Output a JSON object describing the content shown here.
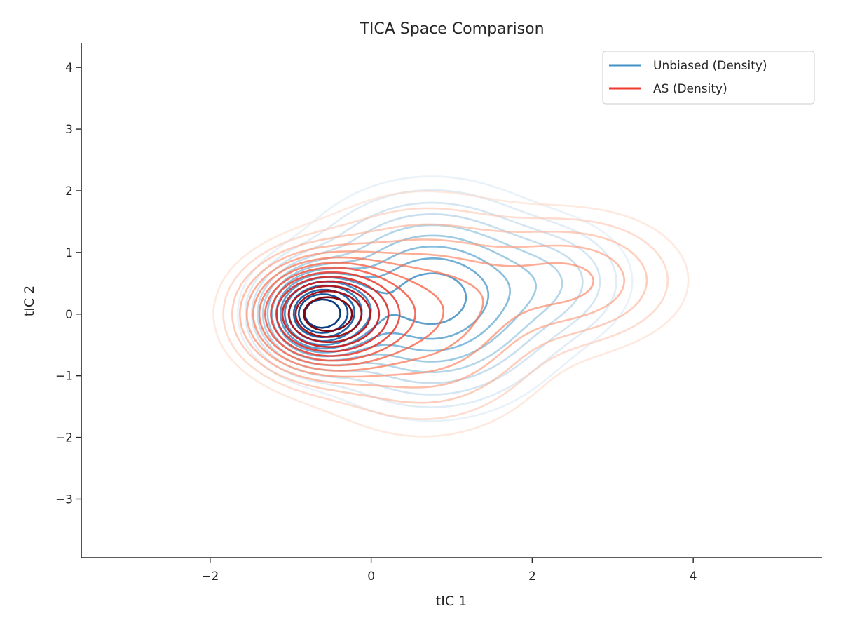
{
  "chart_data": {
    "type": "contour",
    "title": "TICA Space Comparison",
    "xlabel": "tIC 1",
    "ylabel": "tIC 2",
    "xlim": [
      -3.6,
      5.6
    ],
    "ylim": [
      -3.95,
      4.4
    ],
    "xticks": [
      -2,
      0,
      2,
      4
    ],
    "yticks": [
      -3,
      -2,
      -1,
      0,
      1,
      2,
      3,
      4
    ],
    "xtick_labels": [
      "−2",
      "0",
      "2",
      "4"
    ],
    "ytick_labels": [
      "−3",
      "−2",
      "−1",
      "0",
      "1",
      "2",
      "3",
      "4"
    ],
    "grid": false,
    "legend_position": "top-right",
    "series": [
      {
        "name": "Unbiased (Density)",
        "color": "#4292c6",
        "colormap": "Blues",
        "levels": 14,
        "modes": [
          {
            "x": -0.65,
            "y": 0.0,
            "sx": 0.38,
            "sy": 0.42,
            "w": 1.0
          },
          {
            "x": 0.75,
            "y": 0.25,
            "sx": 0.8,
            "sy": 0.85,
            "w": 0.55
          },
          {
            "x": 2.3,
            "y": 0.55,
            "sx": 0.55,
            "sy": 0.55,
            "w": 0.14
          }
        ]
      },
      {
        "name": "AS (Density)",
        "color": "#ef3b2c",
        "colormap": "Reds",
        "levels": 14,
        "modes": [
          {
            "x": -0.6,
            "y": 0.0,
            "sx": 0.52,
            "sy": 0.5,
            "w": 1.0
          },
          {
            "x": 0.65,
            "y": 0.0,
            "sx": 0.85,
            "sy": 0.95,
            "w": 0.32
          },
          {
            "x": 2.55,
            "y": 0.55,
            "sx": 0.75,
            "sy": 0.62,
            "w": 0.2
          }
        ]
      }
    ]
  }
}
